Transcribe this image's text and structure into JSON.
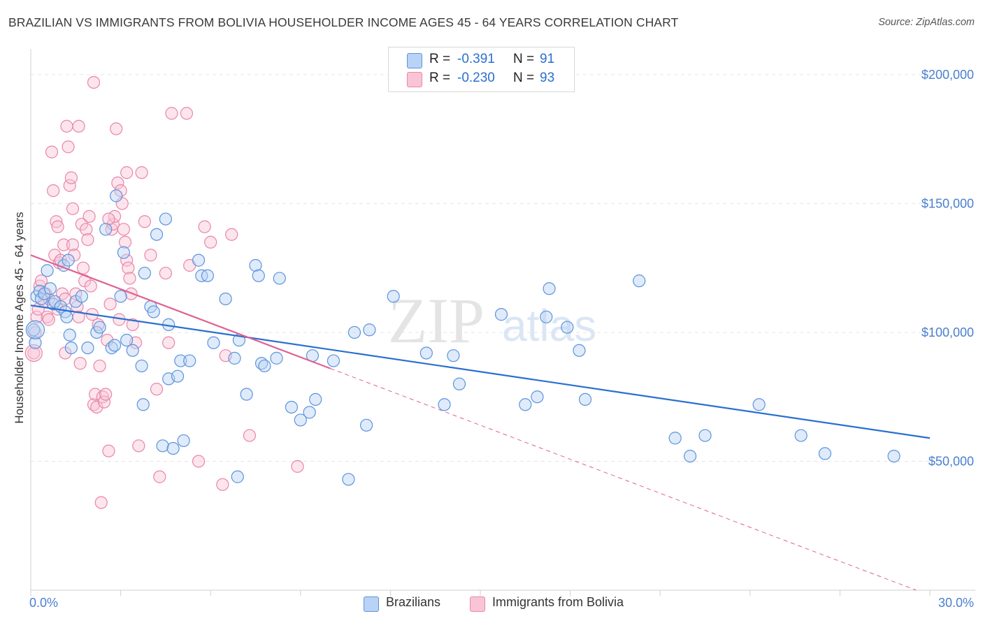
{
  "title": "BRAZILIAN VS IMMIGRANTS FROM BOLIVIA HOUSEHOLDER INCOME AGES 45 - 64 YEARS CORRELATION CHART",
  "source": "Source: ZipAtlas.com",
  "watermark": {
    "zip": "ZIP",
    "atlas": "atlas"
  },
  "legend": {
    "rows": [
      {
        "r_label": "R =",
        "r_value": "-0.391",
        "n_label": "N =",
        "n_value": "91"
      },
      {
        "r_label": "R =",
        "r_value": "-0.230",
        "n_label": "N =",
        "n_value": "93"
      }
    ]
  },
  "bottom_legend": {
    "brazilians": "Brazilians",
    "bolivia": "Immigrants from Bolivia"
  },
  "colors": {
    "blue_fill": "#b8d3f5",
    "blue_stroke": "#5c93dc",
    "blue_line": "#2a6fd1",
    "pink_fill": "#f9c5d6",
    "pink_stroke": "#ea85a9",
    "pink_line": "#e06292",
    "axis_text": "#4a7fd0",
    "grid": "#e5e5e5"
  },
  "chart_data": {
    "type": "scatter",
    "title": "BRAZILIAN VS IMMIGRANTS FROM BOLIVIA HOUSEHOLDER INCOME AGES 45 - 64 YEARS CORRELATION CHART",
    "xlabel": "",
    "ylabel": "Householder Income Ages 45 - 64 years",
    "xlim": [
      0,
      30
    ],
    "ylim": [
      0,
      210000
    ],
    "x_tick_labels": [
      "0.0%",
      "30.0%"
    ],
    "y_ticks": [
      50000,
      100000,
      150000,
      200000
    ],
    "y_tick_labels": [
      "$50,000",
      "$100,000",
      "$150,000",
      "$200,000"
    ],
    "grid": true,
    "legend_position": "top-center",
    "series": [
      {
        "name": "Brazilians",
        "r": -0.391,
        "n": 91,
        "trend": {
          "x": [
            0,
            30
          ],
          "y": [
            110500,
            59000
          ],
          "solid_to": 30
        },
        "points": [
          [
            0.1,
            101000
          ],
          [
            0.15,
            96000
          ],
          [
            0.2,
            114000
          ],
          [
            0.3,
            116000
          ],
          [
            0.35,
            113000
          ],
          [
            0.45,
            115000
          ],
          [
            0.55,
            124000
          ],
          [
            0.65,
            117000
          ],
          [
            0.75,
            111000
          ],
          [
            0.8,
            112000
          ],
          [
            1.0,
            110000
          ],
          [
            1.1,
            126000
          ],
          [
            1.15,
            108000
          ],
          [
            1.2,
            106000
          ],
          [
            1.25,
            128000
          ],
          [
            1.3,
            99000
          ],
          [
            1.35,
            94000
          ],
          [
            1.5,
            112000
          ],
          [
            1.7,
            114000
          ],
          [
            1.9,
            94000
          ],
          [
            2.2,
            100000
          ],
          [
            2.3,
            102000
          ],
          [
            2.5,
            140000
          ],
          [
            2.7,
            94000
          ],
          [
            2.8,
            95000
          ],
          [
            2.85,
            153000
          ],
          [
            3.0,
            114000
          ],
          [
            3.1,
            131000
          ],
          [
            3.2,
            97000
          ],
          [
            3.4,
            93000
          ],
          [
            3.7,
            87000
          ],
          [
            3.75,
            72000
          ],
          [
            3.8,
            123000
          ],
          [
            4.0,
            110000
          ],
          [
            4.1,
            108000
          ],
          [
            4.2,
            138000
          ],
          [
            4.4,
            56000
          ],
          [
            4.5,
            144000
          ],
          [
            4.6,
            103000
          ],
          [
            4.6,
            82000
          ],
          [
            4.75,
            55000
          ],
          [
            4.9,
            83000
          ],
          [
            5.0,
            89000
          ],
          [
            5.1,
            58000
          ],
          [
            5.3,
            89000
          ],
          [
            5.6,
            128000
          ],
          [
            5.7,
            122000
          ],
          [
            5.9,
            122000
          ],
          [
            6.1,
            96000
          ],
          [
            6.5,
            113000
          ],
          [
            6.8,
            90000
          ],
          [
            6.9,
            44000
          ],
          [
            6.95,
            97000
          ],
          [
            7.2,
            76000
          ],
          [
            7.5,
            126000
          ],
          [
            7.6,
            122000
          ],
          [
            7.7,
            88000
          ],
          [
            7.8,
            87000
          ],
          [
            8.2,
            90000
          ],
          [
            8.3,
            121000
          ],
          [
            8.7,
            71000
          ],
          [
            9.0,
            66000
          ],
          [
            9.3,
            69000
          ],
          [
            9.4,
            91000
          ],
          [
            9.5,
            74000
          ],
          [
            10.1,
            89000
          ],
          [
            10.6,
            43000
          ],
          [
            10.8,
            100000
          ],
          [
            11.2,
            64000
          ],
          [
            11.3,
            101000
          ],
          [
            12.1,
            114000
          ],
          [
            13.2,
            92000
          ],
          [
            13.8,
            72000
          ],
          [
            14.3,
            80000
          ],
          [
            15.7,
            107000
          ],
          [
            16.5,
            72000
          ],
          [
            16.9,
            75000
          ],
          [
            17.2,
            106000
          ],
          [
            17.3,
            117000
          ],
          [
            18.3,
            93000
          ],
          [
            18.5,
            74000
          ],
          [
            20.3,
            120000
          ],
          [
            21.5,
            59000
          ],
          [
            22.0,
            52000
          ],
          [
            22.5,
            60000
          ],
          [
            24.3,
            72000
          ],
          [
            25.7,
            60000
          ],
          [
            26.5,
            53000
          ],
          [
            28.8,
            52000
          ],
          [
            14.1,
            91000
          ],
          [
            17.9,
            102000
          ]
        ]
      },
      {
        "name": "Immigrants from Bolivia",
        "r": -0.23,
        "n": 93,
        "trend": {
          "x": [
            0,
            30
          ],
          "y": [
            130000,
            -2000
          ],
          "solid_to": 10
        },
        "points": [
          [
            0.1,
            92000
          ],
          [
            0.15,
            100000
          ],
          [
            0.2,
            106000
          ],
          [
            0.25,
            109000
          ],
          [
            0.3,
            118000
          ],
          [
            0.35,
            120000
          ],
          [
            0.45,
            112000
          ],
          [
            0.5,
            115000
          ],
          [
            0.55,
            106000
          ],
          [
            0.6,
            105000
          ],
          [
            0.7,
            170000
          ],
          [
            0.75,
            155000
          ],
          [
            0.8,
            130000
          ],
          [
            0.85,
            143000
          ],
          [
            0.9,
            141000
          ],
          [
            0.95,
            127000
          ],
          [
            1.0,
            128000
          ],
          [
            1.05,
            115000
          ],
          [
            1.1,
            134000
          ],
          [
            1.15,
            92000
          ],
          [
            1.2,
            180000
          ],
          [
            1.25,
            172000
          ],
          [
            1.3,
            157000
          ],
          [
            1.35,
            160000
          ],
          [
            1.4,
            134000
          ],
          [
            1.45,
            130000
          ],
          [
            1.5,
            115000
          ],
          [
            1.55,
            110000
          ],
          [
            1.6,
            106000
          ],
          [
            1.65,
            88000
          ],
          [
            1.7,
            142000
          ],
          [
            1.75,
            125000
          ],
          [
            1.8,
            120000
          ],
          [
            1.85,
            140000
          ],
          [
            1.9,
            136000
          ],
          [
            1.95,
            145000
          ],
          [
            2.0,
            118000
          ],
          [
            2.05,
            107000
          ],
          [
            2.1,
            72000
          ],
          [
            2.15,
            76000
          ],
          [
            2.2,
            71000
          ],
          [
            2.25,
            103000
          ],
          [
            2.3,
            87000
          ],
          [
            2.35,
            34000
          ],
          [
            2.4,
            75000
          ],
          [
            2.45,
            73000
          ],
          [
            2.5,
            76000
          ],
          [
            2.55,
            97000
          ],
          [
            2.6,
            54000
          ],
          [
            2.65,
            111000
          ],
          [
            2.7,
            140000
          ],
          [
            2.75,
            142000
          ],
          [
            2.8,
            145000
          ],
          [
            2.85,
            179000
          ],
          [
            2.9,
            158000
          ],
          [
            3.0,
            155000
          ],
          [
            3.05,
            150000
          ],
          [
            3.1,
            140000
          ],
          [
            3.15,
            135000
          ],
          [
            3.2,
            128000
          ],
          [
            3.25,
            125000
          ],
          [
            3.3,
            121000
          ],
          [
            3.35,
            115000
          ],
          [
            3.4,
            103000
          ],
          [
            3.5,
            96000
          ],
          [
            3.6,
            56000
          ],
          [
            3.7,
            162000
          ],
          [
            3.8,
            143000
          ],
          [
            4.0,
            130000
          ],
          [
            4.2,
            78000
          ],
          [
            4.3,
            44000
          ],
          [
            4.5,
            123000
          ],
          [
            4.6,
            96000
          ],
          [
            4.7,
            185000
          ],
          [
            5.2,
            185000
          ],
          [
            5.3,
            126000
          ],
          [
            5.6,
            50000
          ],
          [
            5.8,
            141000
          ],
          [
            6.0,
            135000
          ],
          [
            6.4,
            41000
          ],
          [
            6.5,
            91000
          ],
          [
            6.7,
            138000
          ],
          [
            7.3,
            60000
          ],
          [
            8.9,
            48000
          ],
          [
            2.1,
            197000
          ],
          [
            1.6,
            180000
          ],
          [
            3.2,
            162000
          ],
          [
            2.95,
            105000
          ],
          [
            1.15,
            113000
          ],
          [
            0.6,
            113000
          ],
          [
            1.4,
            148000
          ],
          [
            2.6,
            144000
          ],
          [
            0.9,
            109000
          ]
        ]
      }
    ]
  }
}
